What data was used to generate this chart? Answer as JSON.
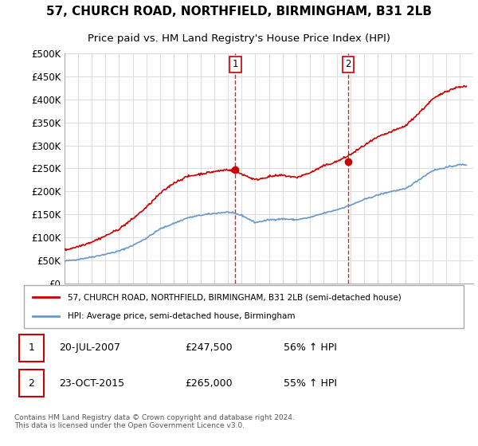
{
  "title": "57, CHURCH ROAD, NORTHFIELD, BIRMINGHAM, B31 2LB",
  "subtitle": "Price paid vs. HM Land Registry's House Price Index (HPI)",
  "ylim": [
    0,
    500000
  ],
  "xlim_start": 1995.0,
  "xlim_end": 2025.0,
  "sale1_x": 2007.54,
  "sale1_y": 247500,
  "sale2_x": 2015.81,
  "sale2_y": 265000,
  "sale1_date": "20-JUL-2007",
  "sale1_price": "£247,500",
  "sale1_hpi": "56% ↑ HPI",
  "sale2_date": "23-OCT-2015",
  "sale2_price": "£265,000",
  "sale2_hpi": "55% ↑ HPI",
  "line_color_red": "#cc0000",
  "line_color_blue": "#6699cc",
  "legend_label_red": "57, CHURCH ROAD, NORTHFIELD, BIRMINGHAM, B31 2LB (semi-detached house)",
  "legend_label_blue": "HPI: Average price, semi-detached house, Birmingham",
  "footnote": "Contains HM Land Registry data © Crown copyright and database right 2024.\nThis data is licensed under the Open Government Licence v3.0.",
  "background_color": "#ffffff",
  "grid_color": "#dddddd",
  "hpi_years": [
    1995,
    1996,
    1997,
    1998,
    1999,
    2000,
    2001,
    2002,
    2003,
    2004,
    2005,
    2006,
    2007,
    2008,
    2009,
    2010,
    2011,
    2012,
    2013,
    2014,
    2015,
    2016,
    2017,
    2018,
    2019,
    2020,
    2021,
    2022,
    2023,
    2024
  ],
  "hpi_vals": [
    48000,
    52000,
    57000,
    63000,
    70000,
    82000,
    98000,
    118000,
    130000,
    142000,
    148000,
    152000,
    155000,
    148000,
    132000,
    138000,
    140000,
    138000,
    143000,
    152000,
    160000,
    170000,
    182000,
    192000,
    200000,
    205000,
    225000,
    245000,
    252000,
    258000
  ],
  "red_years": [
    1995,
    1996,
    1997,
    1998,
    1999,
    2000,
    2001,
    2002,
    2003,
    2004,
    2005,
    2006,
    2007,
    2008,
    2009,
    2010,
    2011,
    2012,
    2013,
    2014,
    2015,
    2016,
    2017,
    2018,
    2019,
    2020,
    2021,
    2022,
    2023,
    2024
  ],
  "red_vals": [
    72000,
    80000,
    90000,
    103000,
    118000,
    140000,
    165000,
    195000,
    218000,
    232000,
    238000,
    243000,
    247500,
    238000,
    225000,
    232000,
    235000,
    230000,
    240000,
    255000,
    265000,
    280000,
    300000,
    318000,
    330000,
    342000,
    370000,
    400000,
    418000,
    428000
  ]
}
